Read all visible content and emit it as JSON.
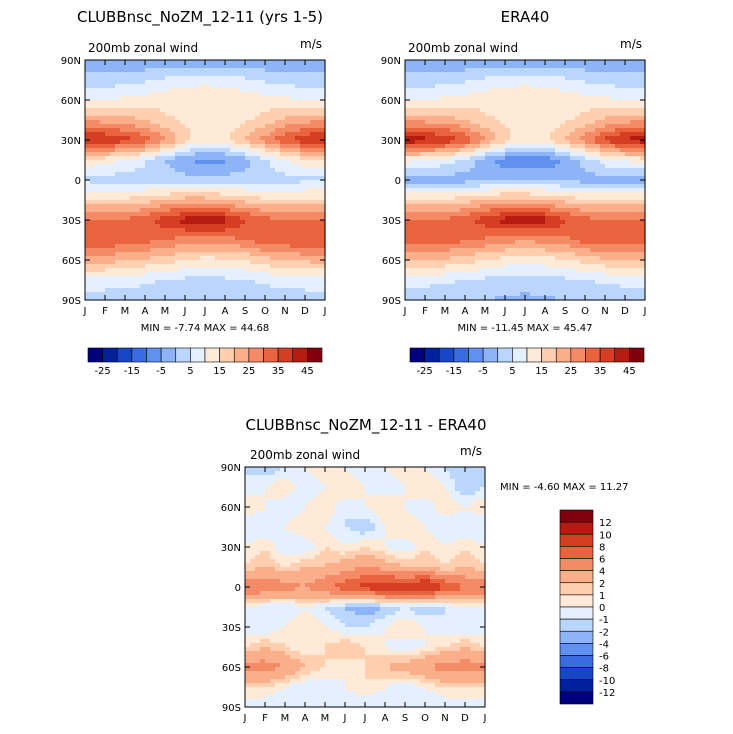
{
  "chart_data": [
    {
      "type": "heatmap",
      "title": "CLUBBnsc_NoZM_12-11 (yrs 1-5)",
      "subtitle": "200mb zonal wind",
      "units": "m/s",
      "x_ticks": [
        "J",
        "F",
        "M",
        "A",
        "M",
        "J",
        "J",
        "A",
        "S",
        "O",
        "N",
        "D",
        "J"
      ],
      "y_ticks": [
        "90N",
        "60N",
        "30N",
        "0",
        "30S",
        "60S",
        "90S"
      ],
      "stats": "MIN =    -7.74 MAX =    44.68",
      "ylim": [
        -90,
        90
      ],
      "profile": {
        "lat": [
          90,
          75,
          60,
          45,
          30,
          15,
          0,
          -15,
          -30,
          -45,
          -60,
          -75,
          -90
        ],
        "values": [
          [
            -4,
            -4,
            -4,
            -4,
            -4,
            -4,
            -4,
            -4,
            -4,
            -4,
            -4,
            -4,
            -4
          ],
          [
            2,
            2,
            3,
            4,
            6,
            8,
            8,
            8,
            6,
            4,
            3,
            2,
            2
          ],
          [
            10,
            10,
            11,
            12,
            13,
            14,
            15,
            14,
            13,
            12,
            11,
            10,
            10
          ],
          [
            24,
            23,
            22,
            20,
            16,
            14,
            12,
            13,
            14,
            17,
            21,
            23,
            24
          ],
          [
            42,
            40,
            37,
            33,
            26,
            17,
            12,
            14,
            20,
            27,
            34,
            39,
            42
          ],
          [
            14,
            12,
            10,
            6,
            0,
            -5,
            -7,
            -6,
            -2,
            4,
            10,
            13,
            14
          ],
          [
            4,
            3,
            2,
            2,
            2,
            2,
            2,
            2,
            2,
            2,
            3,
            4,
            4
          ],
          [
            16,
            16,
            16,
            18,
            20,
            22,
            22,
            20,
            18,
            16,
            16,
            16,
            16
          ],
          [
            30,
            30,
            31,
            33,
            38,
            42,
            44,
            42,
            36,
            32,
            30,
            30,
            30
          ],
          [
            35,
            34,
            33,
            32,
            30,
            28,
            27,
            28,
            30,
            33,
            34,
            35,
            35
          ],
          [
            22,
            22,
            21,
            19,
            17,
            15,
            13,
            14,
            15,
            18,
            20,
            21,
            22
          ],
          [
            8,
            8,
            7,
            6,
            5,
            4,
            3,
            4,
            5,
            6,
            7,
            8,
            8
          ],
          [
            2,
            2,
            2,
            2,
            1,
            0,
            0,
            0,
            1,
            2,
            2,
            2,
            2
          ]
        ]
      },
      "colorbar": {
        "labels": [
          "-25",
          "-15",
          "-5",
          "5",
          "15",
          "25",
          "35",
          "45"
        ],
        "colors": [
          "#00007f",
          "#00219f",
          "#1747c7",
          "#3a6ce0",
          "#6091f0",
          "#8db4f7",
          "#bad6fc",
          "#e4f0ff",
          "#ffe9d7",
          "#ffcfb0",
          "#fbae8a",
          "#f58b66",
          "#e9633f",
          "#d53e22",
          "#b51b11",
          "#80000d"
        ]
      }
    },
    {
      "type": "heatmap",
      "title": "ERA40",
      "subtitle": "200mb zonal wind",
      "units": "m/s",
      "x_ticks": [
        "J",
        "F",
        "M",
        "A",
        "M",
        "J",
        "J",
        "A",
        "S",
        "O",
        "N",
        "D",
        "J"
      ],
      "y_ticks": [
        "90N",
        "60N",
        "30N",
        "0",
        "30S",
        "60S",
        "90S"
      ],
      "stats": "MIN =   -11.45 MAX =    45.47",
      "ylim": [
        -90,
        90
      ],
      "profile": {
        "lat": [
          90,
          75,
          60,
          45,
          30,
          15,
          0,
          -15,
          -30,
          -45,
          -60,
          -75,
          -90
        ],
        "values": [
          [
            -4,
            -4,
            -4,
            -4,
            -4,
            -4,
            -4,
            -4,
            -4,
            -4,
            -4,
            -4,
            -4
          ],
          [
            2,
            2,
            3,
            4,
            6,
            8,
            8,
            8,
            6,
            4,
            3,
            2,
            2
          ],
          [
            10,
            10,
            11,
            12,
            13,
            14,
            15,
            14,
            13,
            12,
            11,
            10,
            10
          ],
          [
            24,
            23,
            22,
            20,
            16,
            14,
            12,
            13,
            14,
            17,
            21,
            23,
            24
          ],
          [
            44,
            42,
            39,
            34,
            26,
            17,
            12,
            14,
            20,
            28,
            36,
            41,
            44
          ],
          [
            12,
            10,
            8,
            4,
            -3,
            -8,
            -10,
            -9,
            -4,
            2,
            8,
            11,
            12
          ],
          [
            -2,
            -3,
            -3,
            -2,
            -1,
            0,
            0,
            0,
            -1,
            -2,
            -2,
            -2,
            -2
          ],
          [
            16,
            16,
            16,
            18,
            20,
            22,
            22,
            20,
            18,
            16,
            16,
            16,
            16
          ],
          [
            30,
            30,
            31,
            33,
            38,
            42,
            44,
            42,
            36,
            32,
            30,
            30,
            30
          ],
          [
            34,
            33,
            32,
            31,
            29,
            27,
            26,
            27,
            29,
            32,
            33,
            34,
            34
          ],
          [
            20,
            20,
            19,
            17,
            15,
            13,
            12,
            13,
            14,
            17,
            19,
            20,
            20
          ],
          [
            7,
            7,
            6,
            5,
            4,
            3,
            2,
            3,
            4,
            5,
            6,
            7,
            7
          ],
          [
            1,
            1,
            1,
            1,
            0,
            -1,
            -1,
            -1,
            0,
            1,
            1,
            1,
            1
          ]
        ]
      },
      "colorbar": {
        "labels": [
          "-25",
          "-15",
          "-5",
          "5",
          "15",
          "25",
          "35",
          "45"
        ],
        "colors": [
          "#00007f",
          "#00219f",
          "#1747c7",
          "#3a6ce0",
          "#6091f0",
          "#8db4f7",
          "#bad6fc",
          "#e4f0ff",
          "#ffe9d7",
          "#ffcfb0",
          "#fbae8a",
          "#f58b66",
          "#e9633f",
          "#d53e22",
          "#b51b11",
          "#80000d"
        ]
      }
    },
    {
      "type": "heatmap",
      "title": "CLUBBnsc_NoZM_12-11 - ERA40",
      "subtitle": "200mb zonal wind",
      "units": "m/s",
      "x_ticks": [
        "J",
        "F",
        "M",
        "A",
        "M",
        "J",
        "J",
        "A",
        "S",
        "O",
        "N",
        "D",
        "J"
      ],
      "y_ticks": [
        "90N",
        "60N",
        "30N",
        "0",
        "30S",
        "60S",
        "90S"
      ],
      "stats": "MIN =   -4.60 MAX =   11.27",
      "ylim": [
        -90,
        90
      ],
      "profile": {
        "lat": [
          90,
          75,
          60,
          45,
          30,
          15,
          0,
          -15,
          -30,
          -45,
          -60,
          -75,
          -90
        ],
        "values": [
          [
            -1,
            -2,
            -1,
            0,
            1,
            0,
            -1,
            0,
            1,
            0,
            -1,
            -2,
            -1
          ],
          [
            -1,
            0,
            1,
            -1,
            0,
            1,
            0,
            -1,
            0,
            1,
            0,
            -2,
            -1
          ],
          [
            1,
            0,
            -1,
            0,
            1,
            -1,
            0,
            1,
            0,
            -1,
            1,
            0,
            1
          ],
          [
            -1,
            -1,
            0,
            1,
            0,
            -1,
            -2,
            0,
            1,
            0,
            -1,
            -1,
            -1
          ],
          [
            0,
            1,
            -1,
            -1,
            1,
            0,
            1,
            0,
            -1,
            1,
            0,
            1,
            0
          ],
          [
            1,
            2,
            1,
            2,
            2,
            3,
            4,
            3,
            2,
            2,
            1,
            2,
            1
          ],
          [
            6,
            6,
            5,
            4,
            6,
            7,
            9,
            10,
            9,
            11,
            8,
            6,
            6
          ],
          [
            0,
            -1,
            -1,
            0,
            -1,
            -2,
            -3,
            -2,
            -1,
            -2,
            -1,
            0,
            0
          ],
          [
            -1,
            -1,
            0,
            1,
            0,
            -1,
            -1,
            0,
            1,
            0,
            -1,
            -1,
            -1
          ],
          [
            1,
            2,
            1,
            0,
            1,
            2,
            1,
            0,
            -1,
            0,
            1,
            2,
            1
          ],
          [
            5,
            5,
            4,
            2,
            1,
            0,
            1,
            2,
            3,
            4,
            5,
            5,
            5
          ],
          [
            1,
            1,
            0,
            -1,
            -1,
            0,
            1,
            0,
            -1,
            0,
            1,
            1,
            1
          ],
          [
            -1,
            -1,
            -1,
            -1,
            0,
            -1,
            -1,
            -1,
            0,
            -1,
            -1,
            -1,
            -1
          ]
        ]
      },
      "colorbar": {
        "labels": [
          "12",
          "10",
          "8",
          "6",
          "4",
          "2",
          "1",
          "0",
          "-1",
          "-2",
          "-4",
          "-6",
          "-8",
          "-10",
          "-12"
        ],
        "levels": [
          -12,
          -10,
          -8,
          -6,
          -4,
          -2,
          -1,
          0,
          1,
          2,
          4,
          6,
          8,
          10,
          12
        ],
        "colors": [
          "#80000d",
          "#b51b11",
          "#d53e22",
          "#e9633f",
          "#f58b66",
          "#fbae8a",
          "#ffcfb0",
          "#ffe9d7",
          "#e4f0ff",
          "#bad6fc",
          "#8db4f7",
          "#6091f0",
          "#3a6ce0",
          "#1747c7",
          "#00219f",
          "#00007f"
        ]
      }
    }
  ]
}
